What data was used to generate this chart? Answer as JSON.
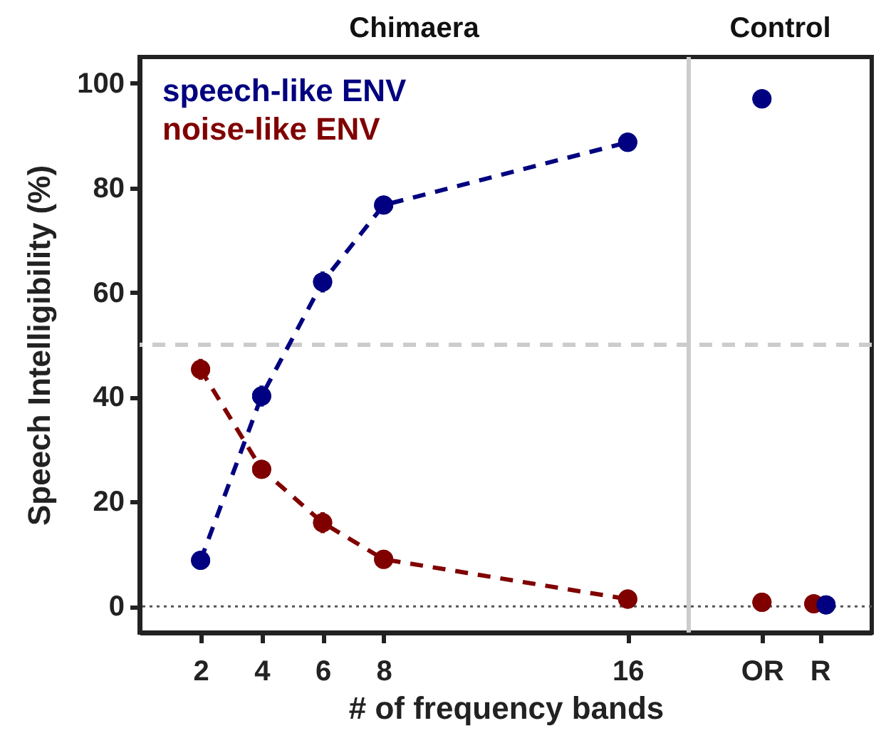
{
  "chart_data": {
    "type": "line",
    "xlabel": "# of frequency bands",
    "ylabel": "Speech Intelligibility (%)",
    "xlim": [
      0,
      24
    ],
    "xticks": [
      2,
      4,
      6,
      8,
      16,
      {
        "value": 20.4,
        "label": "OR"
      },
      {
        "value": 22.3,
        "label": "R"
      }
    ],
    "ylim": [
      -5,
      105
    ],
    "yticks": [
      0,
      20,
      40,
      60,
      80,
      100
    ],
    "grid": false,
    "legend": "top left",
    "marker": "circle",
    "line_style": "dashed",
    "series": [
      {
        "name": "speech-like ENV",
        "type": "line",
        "color": "#000080",
        "x": [
          2,
          4,
          6,
          8,
          16
        ],
        "values": [
          8.8,
          40.2,
          62,
          76.7,
          88.7
        ],
        "errors": [
          1,
          2,
          2,
          1.5,
          1.5
        ]
      },
      {
        "name": "noise-like ENV",
        "type": "line",
        "color": "#800000",
        "x": [
          2,
          4,
          6,
          8,
          16
        ],
        "values": [
          45.3,
          26.2,
          16,
          9,
          1.4
        ],
        "errors": [
          2,
          1.5,
          2,
          1,
          1
        ]
      },
      {
        "type": "scatter",
        "color": "#800000",
        "x": [
          20.4,
          22.1
        ],
        "values": [
          0.8,
          0.5
        ]
      },
      {
        "type": "scatter",
        "color": "#000080",
        "x": [
          20.4,
          22.5
        ],
        "values": [
          97,
          0.3
        ]
      }
    ],
    "ref_lines": [
      {
        "axis": "y",
        "value": 50,
        "color": "#cccccc",
        "line_style": "dashed"
      },
      {
        "axis": "y",
        "value": 0,
        "color": "#555555",
        "line_style": "dotted"
      },
      {
        "axis": "x",
        "value": 18,
        "color": "#cccccc",
        "line_style": "solid"
      }
    ],
    "annotations": [
      "Chimaera",
      "Control"
    ]
  }
}
